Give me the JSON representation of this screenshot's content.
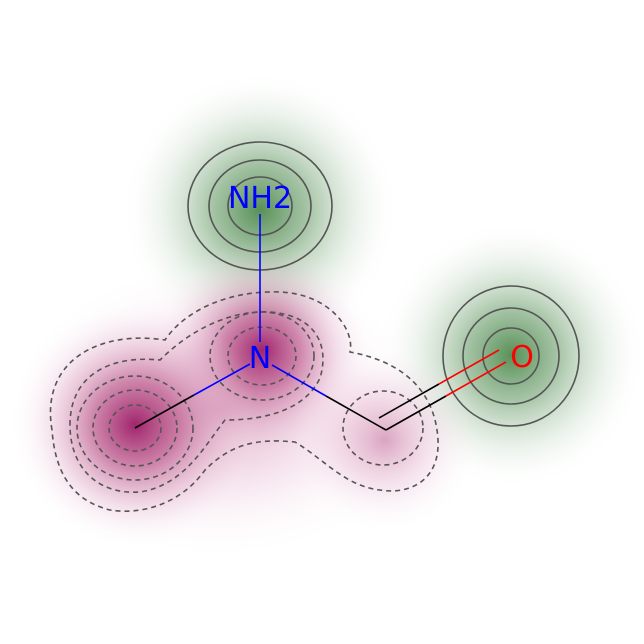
{
  "molecule": {
    "atoms": [
      {
        "id": "nh2",
        "label": "NH2",
        "element": "N",
        "color": "#0000ff"
      },
      {
        "id": "n",
        "label": "N",
        "element": "N",
        "color": "#0000ff"
      },
      {
        "id": "c_methyl",
        "label": "",
        "element": "C",
        "color": "#000000"
      },
      {
        "id": "c_carbonyl",
        "label": "",
        "element": "C",
        "color": "#000000"
      },
      {
        "id": "o",
        "label": "O",
        "element": "O",
        "color": "#ff0000"
      }
    ],
    "bonds": [
      {
        "from": "nh2",
        "to": "n",
        "order": 1
      },
      {
        "from": "n",
        "to": "c_methyl",
        "order": 1
      },
      {
        "from": "n",
        "to": "c_carbonyl",
        "order": 1
      },
      {
        "from": "c_carbonyl",
        "to": "o",
        "order": 2
      }
    ]
  },
  "colors": {
    "positive": "#4f8a4f",
    "negative": "#9b1b66",
    "contour_line": "#555555",
    "carbon_bond": "#000000",
    "nitrogen": "#0000ff",
    "oxygen": "#ff0000"
  }
}
